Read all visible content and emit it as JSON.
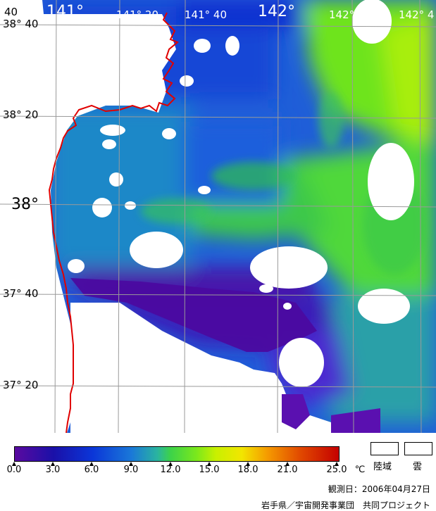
{
  "map": {
    "lon_labels": [
      "141°",
      "141° 20",
      "141° 40",
      "142°",
      "142° 20",
      "142° 4"
    ],
    "lat_labels": [
      "38° 40",
      "38° 20",
      "38°",
      "37° 40",
      "37° 20"
    ],
    "corner_label": "40"
  },
  "colorbar": {
    "ticks": [
      "0.0",
      "3.0",
      "6.0",
      "9.0",
      "12.0",
      "15.0",
      "18.0",
      "21.0",
      "25.0"
    ],
    "unit": "℃"
  },
  "legend": {
    "land": "陸域",
    "cloud": "雲"
  },
  "observation_date": "観測日：2006年04月27日",
  "credit": "岩手県／宇宙開発事業団　共同プロジェクト",
  "colors": {
    "coastline": "#e00000",
    "grid": "#a0a0a0",
    "land": "#ffffff",
    "cloud": "#ffffff"
  }
}
